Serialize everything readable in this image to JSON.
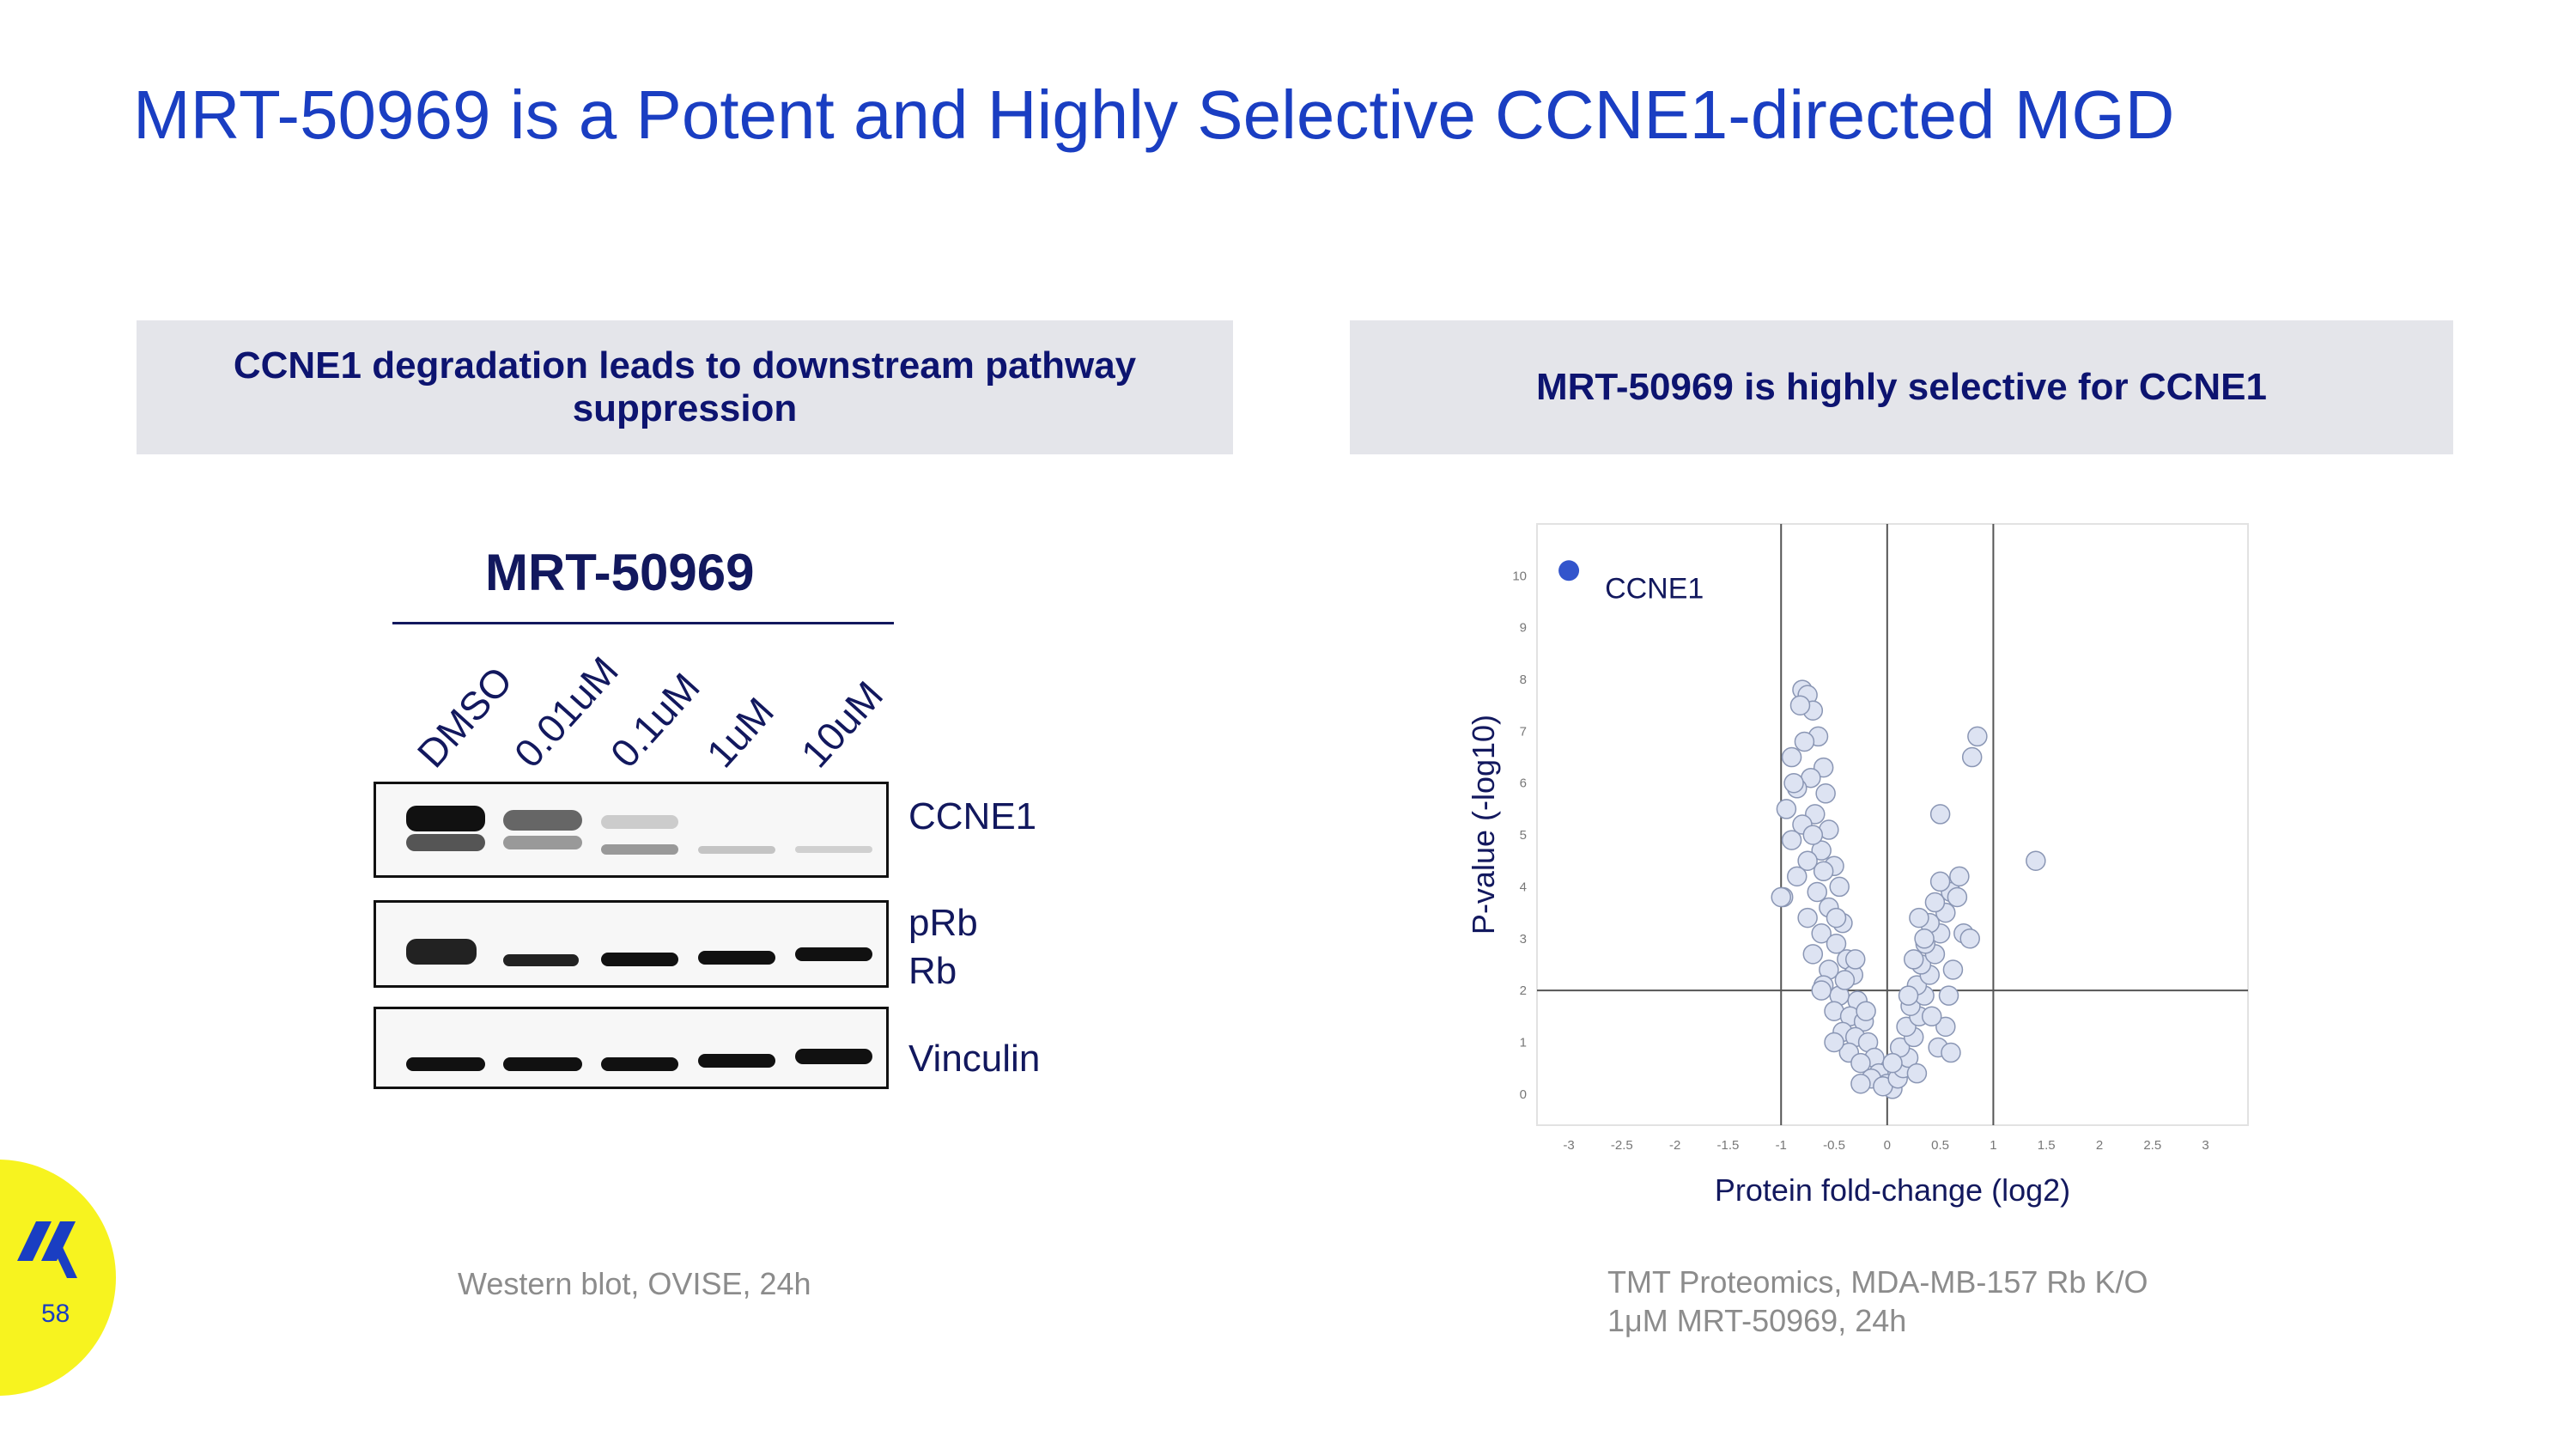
{
  "slide": {
    "title": "MRT-50969 is a Potent and Highly Selective CCNE1-directed MGD",
    "page_number": "58",
    "accent_color": "#1a3ec2",
    "badge_color": "#f7f31f"
  },
  "left_panel": {
    "header": "CCNE1 degradation leads to downstream pathway suppression",
    "blot_title": "MRT-50969",
    "lanes": [
      "DMSO",
      "0.01uM",
      "0.1uM",
      "1uM",
      "10uM"
    ],
    "bands": [
      "CCNE1",
      "pRb",
      "Rb",
      "Vinculin"
    ],
    "caption": "Western blot, OVISE, 24h"
  },
  "right_panel": {
    "header": "MRT-50969 is highly selective for CCNE1",
    "caption_line1": "TMT Proteomics, MDA-MB-157 Rb K/O",
    "caption_line2": "1μM MRT-50969, 24h"
  },
  "chart_data": {
    "type": "scatter",
    "title": "",
    "xlabel": "Protein fold-change (log2)",
    "ylabel": "P-value (-log10)",
    "xlim": [
      -3.3,
      3.4
    ],
    "ylim": [
      -0.6,
      11.0
    ],
    "x_ticks": [
      "-3",
      "-2.5",
      "-2",
      "-1.5",
      "-1",
      "-0.5",
      "0",
      "0.5",
      "1",
      "1.5",
      "2",
      "2.5",
      "3"
    ],
    "y_ticks": [
      "0",
      "1",
      "2",
      "3",
      "4",
      "5",
      "6",
      "7",
      "8",
      "9",
      "10"
    ],
    "vertical_lines": [
      -1,
      0,
      1
    ],
    "horizontal_lines": [
      2
    ],
    "highlight": {
      "label": "CCNE1",
      "x": -3.0,
      "y": 10.1,
      "color": "#3355cc"
    },
    "point_color": "#dde3f2",
    "series": [
      {
        "name": "proteins",
        "points": [
          [
            -0.8,
            7.8
          ],
          [
            -0.75,
            7.7
          ],
          [
            -0.7,
            7.4
          ],
          [
            -0.82,
            7.5
          ],
          [
            -0.65,
            6.9
          ],
          [
            -0.78,
            6.8
          ],
          [
            -0.9,
            6.5
          ],
          [
            -0.6,
            6.3
          ],
          [
            -0.72,
            6.1
          ],
          [
            -0.85,
            5.9
          ],
          [
            -0.58,
            5.8
          ],
          [
            -0.95,
            5.5
          ],
          [
            -0.68,
            5.4
          ],
          [
            -0.8,
            5.2
          ],
          [
            -0.55,
            5.1
          ],
          [
            -0.9,
            4.9
          ],
          [
            -0.62,
            4.7
          ],
          [
            -0.75,
            4.5
          ],
          [
            -0.5,
            4.4
          ],
          [
            -0.85,
            4.2
          ],
          [
            -0.45,
            4.0
          ],
          [
            -0.66,
            3.9
          ],
          [
            -0.98,
            3.8
          ],
          [
            -0.55,
            3.6
          ],
          [
            -0.75,
            3.4
          ],
          [
            -0.42,
            3.3
          ],
          [
            -0.62,
            3.1
          ],
          [
            -0.48,
            2.9
          ],
          [
            -0.7,
            2.7
          ],
          [
            -0.38,
            2.6
          ],
          [
            -0.55,
            2.4
          ],
          [
            -0.32,
            2.3
          ],
          [
            -0.6,
            2.1
          ],
          [
            -0.45,
            1.9
          ],
          [
            -0.28,
            1.8
          ],
          [
            -0.5,
            1.6
          ],
          [
            -0.35,
            1.5
          ],
          [
            -0.22,
            1.4
          ],
          [
            -0.42,
            1.2
          ],
          [
            -0.3,
            1.1
          ],
          [
            -0.18,
            1.0
          ],
          [
            -0.36,
            0.8
          ],
          [
            -0.12,
            0.7
          ],
          [
            -0.25,
            0.6
          ],
          [
            -0.08,
            0.4
          ],
          [
            -0.15,
            0.3
          ],
          [
            0.0,
            0.2
          ],
          [
            0.05,
            0.1
          ],
          [
            -0.04,
            0.15
          ],
          [
            0.1,
            0.3
          ],
          [
            0.15,
            0.5
          ],
          [
            0.2,
            0.7
          ],
          [
            0.12,
            0.9
          ],
          [
            0.25,
            1.1
          ],
          [
            0.18,
            1.3
          ],
          [
            0.3,
            1.5
          ],
          [
            0.22,
            1.7
          ],
          [
            0.35,
            1.9
          ],
          [
            0.28,
            2.1
          ],
          [
            0.4,
            2.3
          ],
          [
            0.32,
            2.5
          ],
          [
            0.45,
            2.7
          ],
          [
            0.36,
            2.9
          ],
          [
            0.5,
            3.1
          ],
          [
            0.4,
            3.3
          ],
          [
            0.55,
            3.5
          ],
          [
            0.45,
            3.7
          ],
          [
            0.6,
            3.9
          ],
          [
            0.5,
            4.1
          ],
          [
            0.68,
            4.2
          ],
          [
            0.35,
            3.0
          ],
          [
            0.62,
            2.4
          ],
          [
            0.58,
            1.9
          ],
          [
            0.55,
            1.3
          ],
          [
            0.48,
            0.9
          ],
          [
            -1.0,
            3.8
          ],
          [
            -0.62,
            2.0
          ],
          [
            -0.5,
            1.0
          ],
          [
            -0.3,
            2.6
          ],
          [
            0.25,
            2.6
          ],
          [
            0.72,
            3.1
          ],
          [
            0.78,
            3.0
          ],
          [
            0.85,
            6.9
          ],
          [
            0.8,
            6.5
          ],
          [
            0.5,
            5.4
          ],
          [
            1.4,
            4.5
          ],
          [
            0.6,
            0.8
          ],
          [
            0.28,
            0.4
          ],
          [
            -0.25,
            0.2
          ],
          [
            0.05,
            0.6
          ],
          [
            -0.6,
            4.3
          ],
          [
            -0.48,
            3.4
          ],
          [
            0.42,
            1.5
          ],
          [
            -0.4,
            2.2
          ],
          [
            0.2,
            1.9
          ],
          [
            -0.7,
            5.0
          ],
          [
            -0.88,
            6.0
          ],
          [
            0.66,
            3.8
          ],
          [
            0.3,
            3.4
          ],
          [
            -0.2,
            1.6
          ]
        ]
      }
    ]
  }
}
